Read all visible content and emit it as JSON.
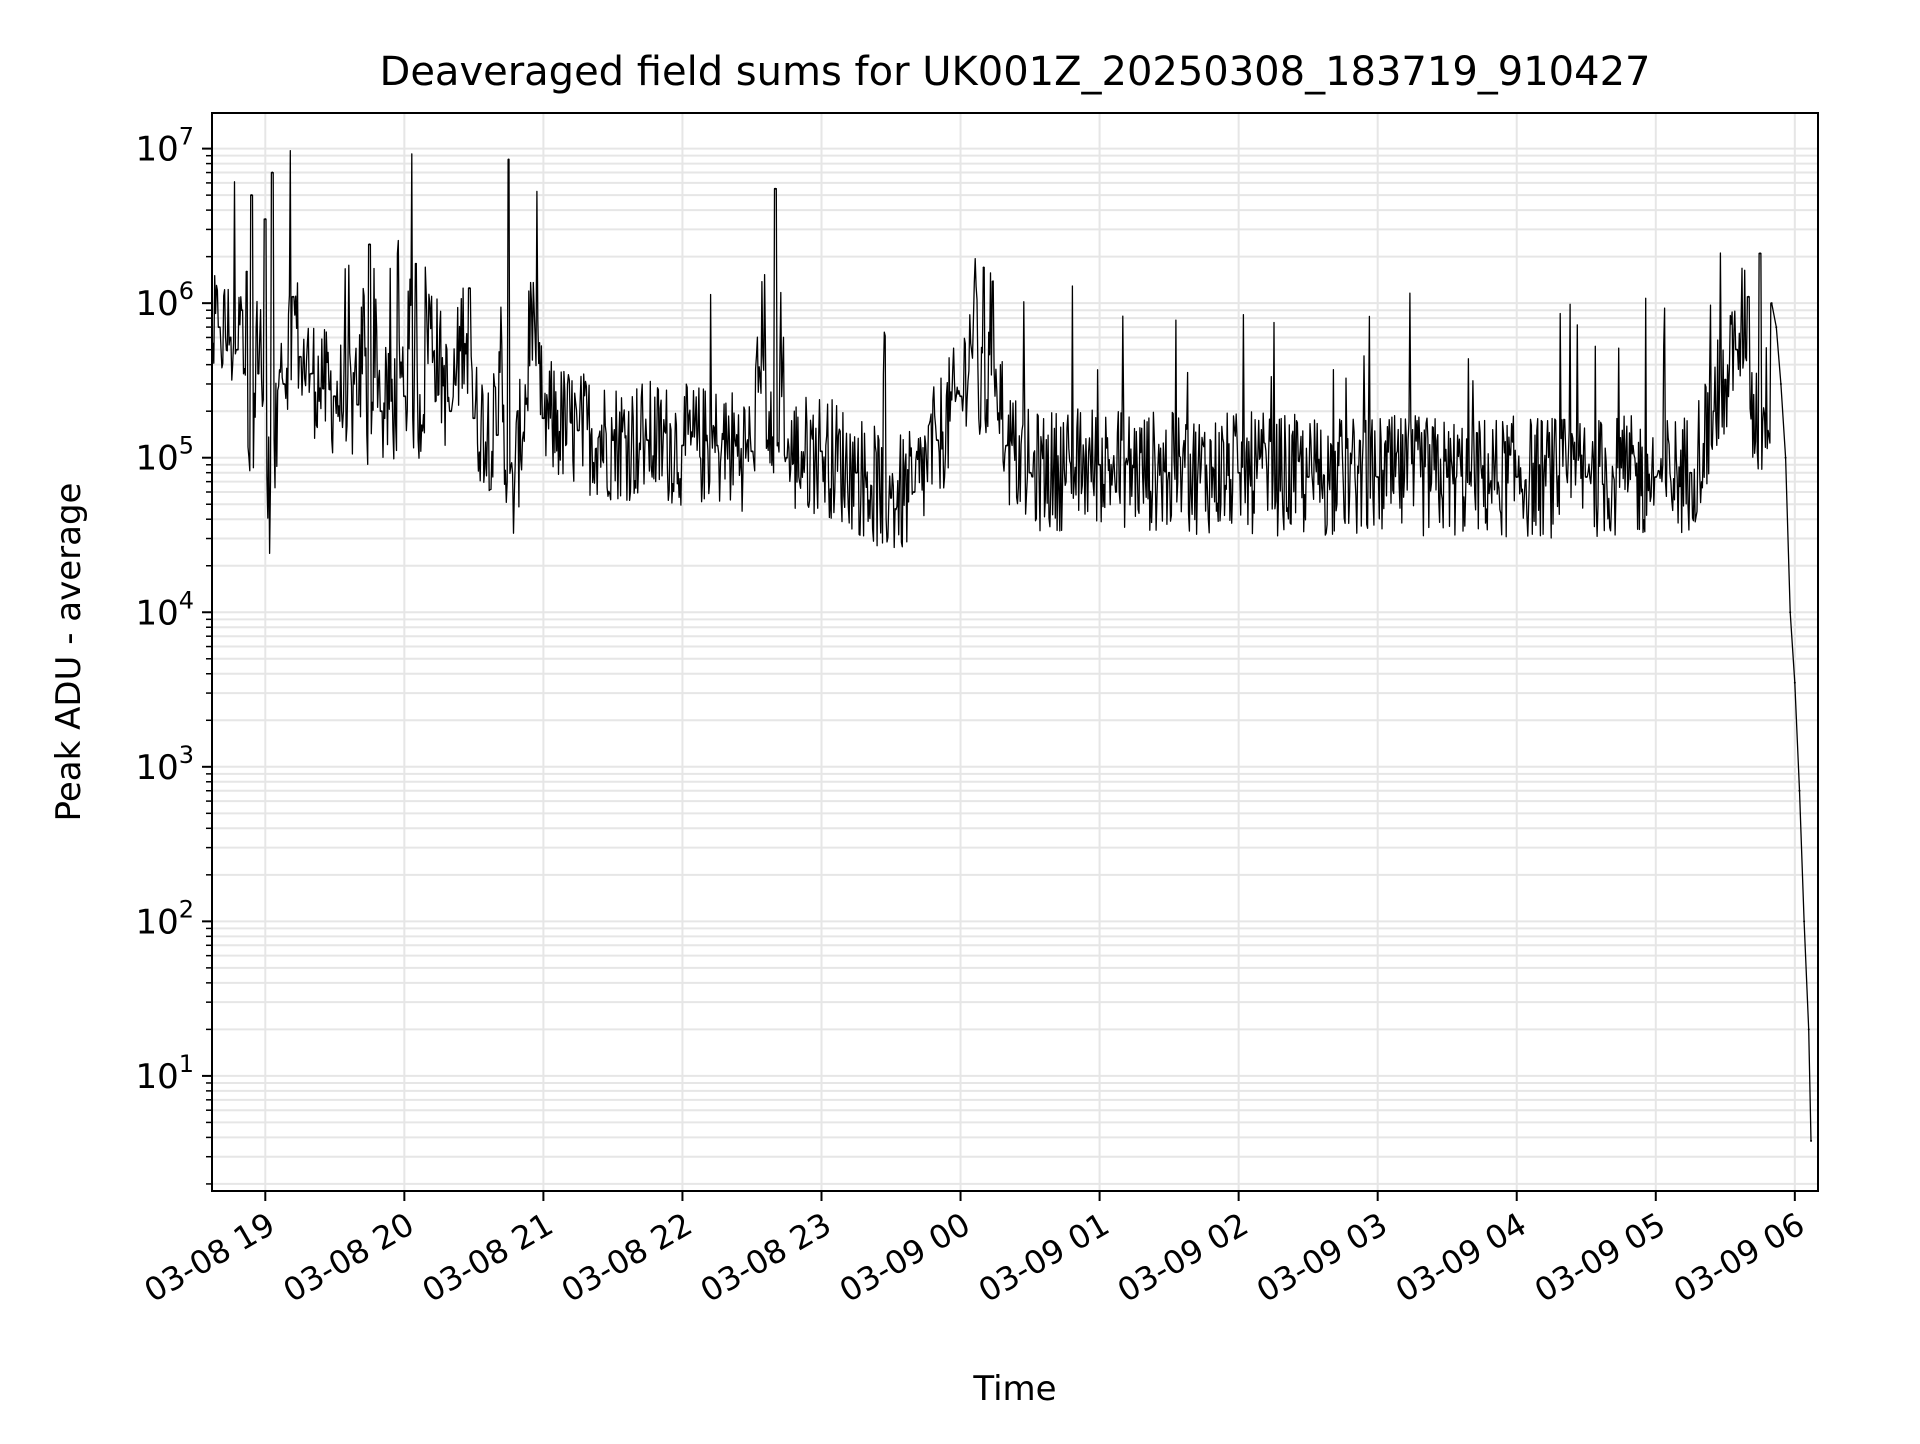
{
  "chart_data": {
    "type": "line",
    "title": "Deaveraged field sums for UK001Z_20250308_183719_910427",
    "xlabel": "Time",
    "ylabel": "Peak ADU - average",
    "yscale": "log",
    "ylim": [
      1.8,
      17000000
    ],
    "xlim": [
      "2025-03-08 18:37",
      "2025-03-09 06:10"
    ],
    "grid": true,
    "line_color": "#000000",
    "grid_color": "#e6e6e6",
    "x_ticks": [
      {
        "label": "03-08 19",
        "x": "2025-03-08 19:00"
      },
      {
        "label": "03-08 20",
        "x": "2025-03-08 20:00"
      },
      {
        "label": "03-08 21",
        "x": "2025-03-08 21:00"
      },
      {
        "label": "03-08 22",
        "x": "2025-03-08 22:00"
      },
      {
        "label": "03-08 23",
        "x": "2025-03-08 23:00"
      },
      {
        "label": "03-09 00",
        "x": "2025-03-09 00:00"
      },
      {
        "label": "03-09 01",
        "x": "2025-03-09 01:00"
      },
      {
        "label": "03-09 02",
        "x": "2025-03-09 02:00"
      },
      {
        "label": "03-09 03",
        "x": "2025-03-09 03:00"
      },
      {
        "label": "03-09 04",
        "x": "2025-03-09 04:00"
      },
      {
        "label": "03-09 05",
        "x": "2025-03-09 05:00"
      },
      {
        "label": "03-09 06",
        "x": "2025-03-09 06:00"
      }
    ],
    "y_ticks": [
      {
        "base": "10",
        "exp": "1",
        "value": 10
      },
      {
        "base": "10",
        "exp": "2",
        "value": 100
      },
      {
        "base": "10",
        "exp": "3",
        "value": 1000
      },
      {
        "base": "10",
        "exp": "4",
        "value": 10000
      },
      {
        "base": "10",
        "exp": "5",
        "value": 100000
      },
      {
        "base": "10",
        "exp": "6",
        "value": 1000000
      },
      {
        "base": "10",
        "exp": "7",
        "value": 10000000
      }
    ],
    "series": [
      {
        "x": [
          "2025-03-08 18:37",
          "2025-03-08 18:40",
          "2025-03-08 18:45",
          "2025-03-08 18:48",
          "2025-03-08 18:50",
          "2025-03-08 18:52",
          "2025-03-08 18:54",
          "2025-03-08 18:57",
          "2025-03-08 19:00",
          "2025-03-08 19:03",
          "2025-03-08 19:08",
          "2025-03-08 19:12",
          "2025-03-08 19:15",
          "2025-03-08 19:20",
          "2025-03-08 19:25",
          "2025-03-08 19:30",
          "2025-03-08 19:40",
          "2025-03-08 19:45",
          "2025-03-08 19:50",
          "2025-03-08 20:00",
          "2025-03-08 20:05",
          "2025-03-08 20:20",
          "2025-03-08 20:28",
          "2025-03-08 20:30",
          "2025-03-08 20:40",
          "2025-03-08 20:45",
          "2025-03-08 21:00",
          "2025-03-08 21:15",
          "2025-03-08 21:30",
          "2025-03-08 21:45",
          "2025-03-08 22:00",
          "2025-03-08 22:15",
          "2025-03-08 22:30",
          "2025-03-08 22:40",
          "2025-03-08 22:45",
          "2025-03-08 23:00",
          "2025-03-08 23:15",
          "2025-03-08 23:30",
          "2025-03-08 23:40",
          "2025-03-08 23:50",
          "2025-03-09 00:00",
          "2025-03-09 00:10",
          "2025-03-09 00:20",
          "2025-03-09 00:30",
          "2025-03-09 01:00",
          "2025-03-09 01:30",
          "2025-03-09 02:00",
          "2025-03-09 02:30",
          "2025-03-09 03:00",
          "2025-03-09 03:30",
          "2025-03-09 04:00",
          "2025-03-09 04:30",
          "2025-03-09 05:00",
          "2025-03-09 05:15",
          "2025-03-09 05:25",
          "2025-03-09 05:30",
          "2025-03-09 05:35",
          "2025-03-09 05:40",
          "2025-03-09 05:45",
          "2025-03-09 05:50",
          "2025-03-09 05:52",
          "2025-03-09 05:54",
          "2025-03-09 05:56",
          "2025-03-09 05:58",
          "2025-03-09 06:00",
          "2025-03-09 06:02",
          "2025-03-09 06:04",
          "2025-03-09 06:06",
          "2025-03-09 06:07"
        ],
        "y": [
          550000,
          700000,
          600000,
          500000,
          900000,
          1600000,
          5000000,
          350000,
          3500000,
          7000000,
          300000,
          1100000,
          450000,
          350000,
          280000,
          250000,
          220000,
          2400000,
          200000,
          250000,
          1800000,
          200000,
          1250000,
          180000,
          140000,
          8500000,
          180000,
          150000,
          130000,
          130000,
          120000,
          120000,
          110000,
          5500000,
          100000,
          110000,
          80000,
          55000,
          60000,
          130000,
          250000,
          1700000,
          120000,
          80000,
          90000,
          80000,
          80000,
          75000,
          75000,
          75000,
          75000,
          75000,
          75000,
          80000,
          200000,
          320000,
          500000,
          1100000,
          2100000,
          1000000,
          700000,
          300000,
          100000,
          10000,
          3500,
          700,
          100,
          20,
          3.8
        ]
      }
    ]
  }
}
